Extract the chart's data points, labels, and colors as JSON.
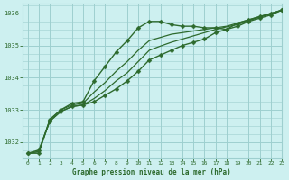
{
  "title": "Graphe pression niveau de la mer (hPa)",
  "background_color": "#cdf0f0",
  "grid_color": "#9ecfcf",
  "line_color": "#2d6a2d",
  "xlim": [
    -0.5,
    23
  ],
  "ylim": [
    1031.5,
    1036.3
  ],
  "yticks": [
    1032,
    1033,
    1034,
    1035,
    1036
  ],
  "xticks": [
    0,
    1,
    2,
    3,
    4,
    5,
    6,
    7,
    8,
    9,
    10,
    11,
    12,
    13,
    14,
    15,
    16,
    17,
    18,
    19,
    20,
    21,
    22,
    23
  ],
  "series": [
    {
      "x": [
        0,
        1,
        2,
        3,
        4,
        5,
        6,
        7,
        8,
        9,
        10,
        11,
        12,
        13,
        14,
        15,
        16,
        17,
        18,
        19,
        20,
        21,
        22,
        23
      ],
      "y": [
        1031.65,
        1031.65,
        1032.7,
        1033.0,
        1033.2,
        1033.25,
        1033.9,
        1034.35,
        1034.8,
        1035.15,
        1035.55,
        1035.75,
        1035.75,
        1035.65,
        1035.6,
        1035.6,
        1035.55,
        1035.55,
        1035.5,
        1035.7,
        1035.8,
        1035.9,
        1036.0,
        1036.1
      ],
      "marker": "D",
      "markersize": 2.5,
      "linewidth": 1.0
    },
    {
      "x": [
        0,
        1,
        2,
        3,
        4,
        5,
        6,
        7,
        8,
        9,
        10,
        11,
        12,
        13,
        14,
        15,
        16,
        17,
        18,
        19,
        20,
        21,
        22,
        23
      ],
      "y": [
        1031.65,
        1031.75,
        1032.65,
        1032.95,
        1033.1,
        1033.15,
        1033.25,
        1033.45,
        1033.65,
        1033.9,
        1034.2,
        1034.55,
        1034.7,
        1034.85,
        1035.0,
        1035.1,
        1035.2,
        1035.4,
        1035.5,
        1035.6,
        1035.75,
        1035.85,
        1035.95,
        1036.1
      ],
      "marker": "D",
      "markersize": 2.5,
      "linewidth": 1.0
    },
    {
      "x": [
        0,
        1,
        2,
        3,
        4,
        5,
        6,
        7,
        8,
        9,
        10,
        11,
        12,
        13,
        14,
        15,
        16,
        17,
        18,
        19,
        20,
        21,
        22,
        23
      ],
      "y": [
        1031.65,
        1031.7,
        1032.7,
        1033.0,
        1033.15,
        1033.2,
        1033.55,
        1033.85,
        1034.2,
        1034.5,
        1034.85,
        1035.15,
        1035.25,
        1035.35,
        1035.4,
        1035.45,
        1035.5,
        1035.55,
        1035.6,
        1035.7,
        1035.8,
        1035.9,
        1036.0,
        1036.1
      ],
      "marker": null,
      "markersize": 0,
      "linewidth": 0.9
    },
    {
      "x": [
        0,
        1,
        2,
        3,
        4,
        5,
        6,
        7,
        8,
        9,
        10,
        11,
        12,
        13,
        14,
        15,
        16,
        17,
        18,
        19,
        20,
        21,
        22,
        23
      ],
      "y": [
        1031.65,
        1031.7,
        1032.65,
        1032.95,
        1033.1,
        1033.15,
        1033.35,
        1033.6,
        1033.9,
        1034.15,
        1034.5,
        1034.85,
        1034.98,
        1035.1,
        1035.2,
        1035.3,
        1035.4,
        1035.5,
        1035.58,
        1035.65,
        1035.78,
        1035.88,
        1035.98,
        1036.1
      ],
      "marker": null,
      "markersize": 0,
      "linewidth": 0.9
    }
  ]
}
